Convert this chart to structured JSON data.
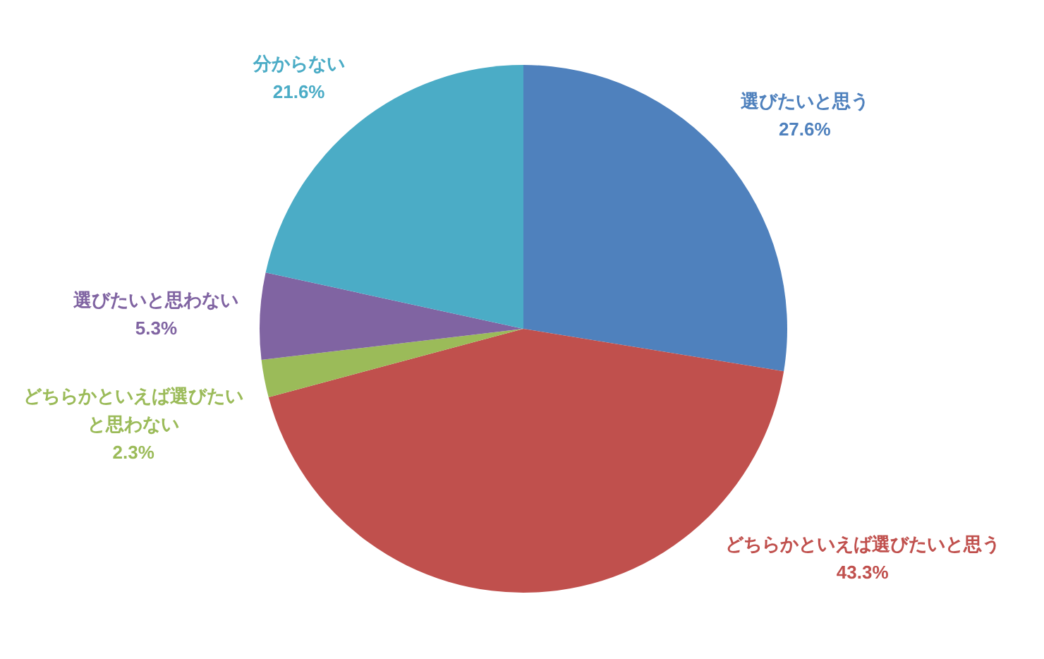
{
  "chart_data": {
    "type": "pie",
    "categories": [
      "選びたいと思う",
      "どちらかといえば選びたいと思う",
      "どちらかといえば選びたいと思わない",
      "選びたいと思わない",
      "分からない"
    ],
    "values": [
      27.6,
      43.3,
      2.3,
      5.3,
      21.6
    ],
    "colors": [
      "#4f81bd",
      "#c0504d",
      "#9bbb59",
      "#8064a2",
      "#4bacc6"
    ],
    "value_labels": [
      "27.6%",
      "43.3%",
      "2.3%",
      "5.3%",
      "21.6%"
    ]
  }
}
